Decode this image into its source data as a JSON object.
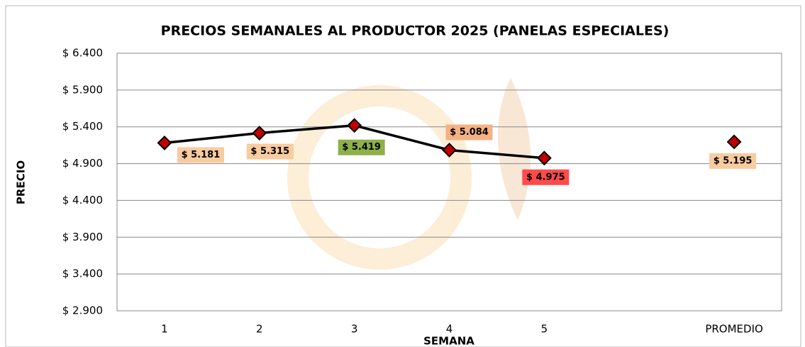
{
  "chart_data": {
    "type": "line",
    "title": "PRECIOS SEMANALES AL PRODUCTOR 2025 (PANELAS ESPECIALES)",
    "x_label": "SEMANA",
    "y_label": "PRECIO",
    "categories": [
      "1",
      "2",
      "3",
      "4",
      "5",
      null,
      "PROMEDIO"
    ],
    "series": [
      {
        "color": "#000000",
        "marker_color": "#c00000",
        "values": [
          5181,
          5315,
          5419,
          5084,
          4975,
          null,
          5195
        ],
        "value_labels": [
          "$ 5.181",
          "$ 5.315",
          "$ 5.419",
          "$ 5.084",
          "$ 4.975",
          null,
          "$ 5.195"
        ],
        "value_label_colors": [
          "#f8cba0",
          "#f8cba0",
          "#8db04a",
          "#f4b183",
          "#ff4b4b",
          null,
          "#f8cba0"
        ]
      }
    ],
    "ylim": [
      2900,
      6400
    ],
    "yticks": [
      {
        "value": 2900,
        "label": "$ 2.900"
      },
      {
        "value": 3400,
        "label": "$ 3.400"
      },
      {
        "value": 3900,
        "label": "$ 3.900"
      },
      {
        "value": 4400,
        "label": "$ 4.400"
      },
      {
        "value": 4900,
        "label": "$ 4.900"
      },
      {
        "value": 5400,
        "label": "$ 5.400"
      },
      {
        "value": 5900,
        "label": "$ 5.900"
      },
      {
        "value": 6400,
        "label": "$ 6.400"
      }
    ],
    "grid": true
  }
}
